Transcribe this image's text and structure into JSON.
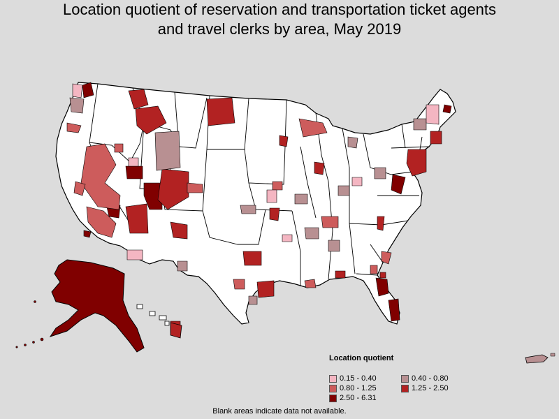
{
  "title": {
    "line1": "Location quotient of reservation and transportation ticket agents",
    "line2": "and travel clerks by area, May 2019"
  },
  "legend": {
    "title": "Location quotient",
    "items": [
      {
        "label": "0.15 - 0.40",
        "color": "#f4b6c2"
      },
      {
        "label": "0.40 - 0.80",
        "color": "#b89092"
      },
      {
        "label": "0.80 - 1.25",
        "color": "#cd5c5c"
      },
      {
        "label": "1.25 - 2.50",
        "color": "#b22222"
      },
      {
        "label": "2.50 - 6.31",
        "color": "#800000"
      }
    ]
  },
  "footnote": "Blank areas indicate data not available.",
  "map": {
    "land_color": "#ffffff",
    "border_color": "#000000",
    "background": "#dcdcdc"
  }
}
